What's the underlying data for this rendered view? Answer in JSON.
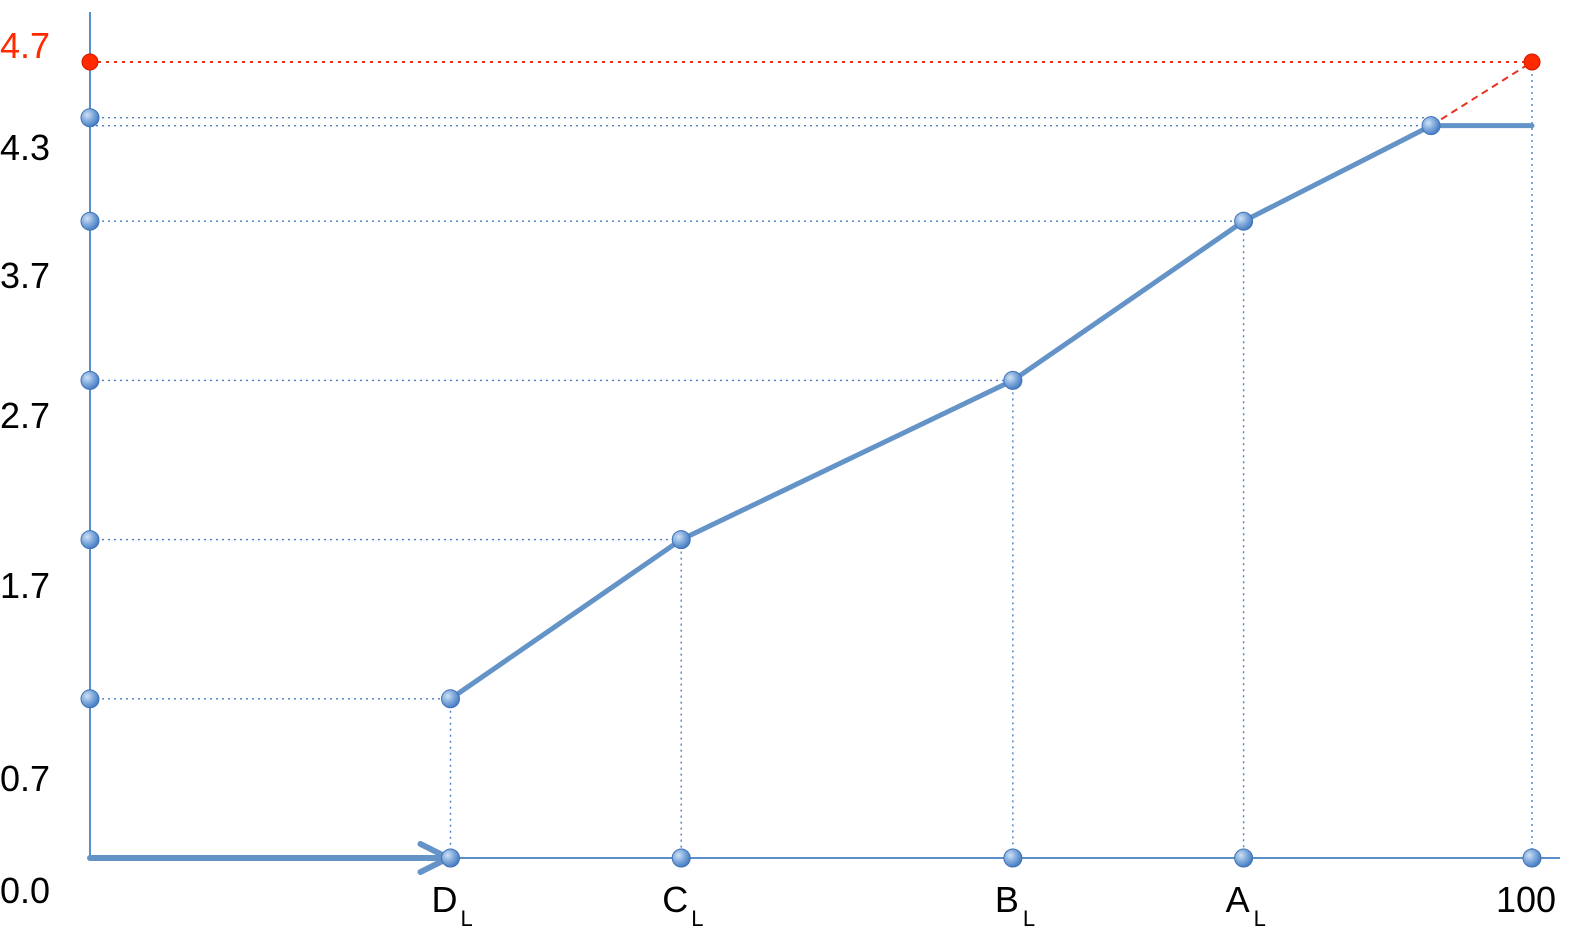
{
  "chart_data": {
    "type": "line",
    "title": "",
    "xlabel": "",
    "ylabel": "",
    "xlim": [
      0,
      100
    ],
    "ylim": [
      0,
      4.7
    ],
    "grid": false,
    "y_tick_labels": [
      "0.0",
      "0.7",
      "1.7",
      "2.7",
      "3.7",
      "4.3",
      "4.7"
    ],
    "y_tick_highlight": "4.7",
    "x_tick_labels": [
      {
        "main": "D",
        "sub": "L",
        "x": 25
      },
      {
        "main": "C",
        "sub": "L",
        "x": 41
      },
      {
        "main": "B",
        "sub": "L",
        "x": 64
      },
      {
        "main": "A",
        "sub": "L",
        "x": 80
      },
      {
        "main": "100",
        "sub": "",
        "x": 100
      }
    ],
    "series": [
      {
        "points": [
          {
            "x": 25,
            "y": 1.0
          },
          {
            "x": 41,
            "y": 2.0
          },
          {
            "x": 64,
            "y": 3.0
          },
          {
            "x": 80,
            "y": 4.0
          },
          {
            "x": 93,
            "y": 4.6
          },
          {
            "x": 100,
            "y": 4.6
          }
        ],
        "color": "#6493c8"
      }
    ],
    "extension": {
      "from": {
        "x": 93,
        "y": 4.6
      },
      "to": {
        "x": 100,
        "y": 5.0
      },
      "color": "#e8321e"
    },
    "start_arrow": {
      "from_x": 0,
      "to_x": 25
    },
    "y_axis_markers": [
      1.0,
      2.0,
      3.0,
      4.0,
      4.65
    ],
    "y_axis_highlight_marker": 5.0,
    "colors": {
      "line": "#6493c8",
      "axis": "#5b8fc9",
      "guide": "#4a7fc4",
      "highlight": "#ff2a00"
    }
  }
}
